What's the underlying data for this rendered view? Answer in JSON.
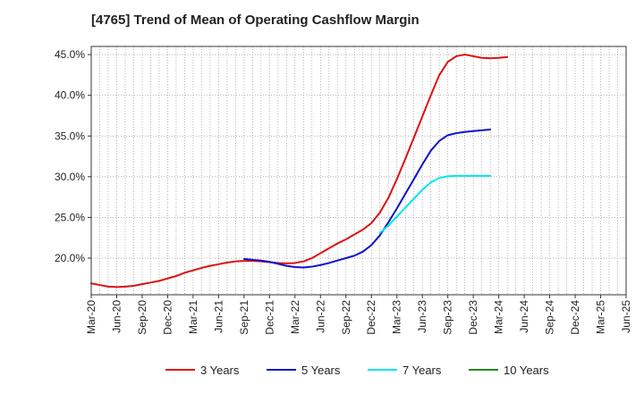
{
  "chart_data": {
    "type": "line",
    "title": "[4765]  Trend of Mean of Operating Cashflow Margin",
    "xlabel": "",
    "ylabel": "",
    "ylim": [
      15.5,
      46.0
    ],
    "x_tick_labels": [
      "Mar-20",
      "Jun-20",
      "Sep-20",
      "Dec-20",
      "Mar-21",
      "Jun-21",
      "Sep-21",
      "Dec-21",
      "Mar-22",
      "Jun-22",
      "Sep-22",
      "Dec-22",
      "Mar-23",
      "Jun-23",
      "Sep-23",
      "Dec-23",
      "Mar-24",
      "Jun-24",
      "Sep-24",
      "Dec-24",
      "Mar-25",
      "Jun-25"
    ],
    "y_ticks": [
      20,
      25,
      30,
      35,
      40,
      45
    ],
    "y_tick_labels": [
      "20.0%",
      "25.0%",
      "30.0%",
      "35.0%",
      "40.0%",
      "45.0%"
    ],
    "grid": true,
    "legend_position": "bottom",
    "series": [
      {
        "name": "3 Years",
        "color": "#dd1111",
        "start_index": 0,
        "values": [
          16.9,
          16.7,
          16.5,
          16.45,
          16.5,
          16.6,
          16.8,
          17.0,
          17.2,
          17.5,
          17.8,
          18.2,
          18.5,
          18.8,
          19.05,
          19.25,
          19.45,
          19.6,
          19.65,
          19.65,
          19.6,
          19.5,
          19.4,
          19.35,
          19.4,
          19.6,
          20.0,
          20.6,
          21.2,
          21.8,
          22.3,
          22.9,
          23.5,
          24.3,
          25.6,
          27.4,
          29.7,
          32.2,
          34.8,
          37.4,
          40.0,
          42.5,
          44.1,
          44.8,
          45.0,
          44.8,
          44.6,
          44.55,
          44.6,
          44.7
        ]
      },
      {
        "name": "5 Years",
        "color": "#1111cc",
        "start_index": 18,
        "values": [
          19.9,
          19.8,
          19.7,
          19.55,
          19.3,
          19.05,
          18.9,
          18.85,
          18.95,
          19.15,
          19.4,
          19.7,
          20.0,
          20.3,
          20.8,
          21.6,
          22.8,
          24.4,
          26.1,
          27.9,
          29.7,
          31.5,
          33.2,
          34.4,
          35.1,
          35.35,
          35.5,
          35.6,
          35.7,
          35.8
        ]
      },
      {
        "name": "7 Years",
        "color": "#00e5ee",
        "start_index": 34,
        "values": [
          23.1,
          24.0,
          25.1,
          26.2,
          27.3,
          28.4,
          29.3,
          29.85,
          30.05,
          30.1,
          30.1,
          30.1,
          30.1,
          30.1
        ]
      },
      {
        "name": "10 Years",
        "color": "#228822",
        "start_index": 0,
        "values": []
      }
    ]
  }
}
